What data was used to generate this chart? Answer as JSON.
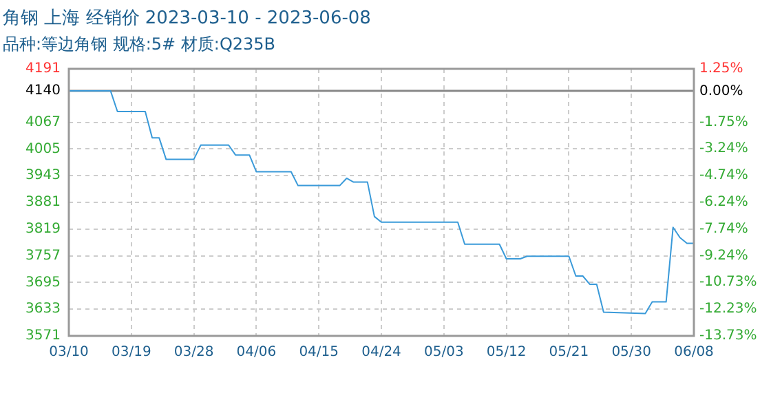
{
  "chart_data": {
    "type": "line",
    "title": "角钢 上海 经销价 2023-03-10 - 2023-06-08",
    "subtitle": "品种:等边角钢 规格:5# 材质:Q235B",
    "x": [
      "2023-03-10",
      "2023-03-16",
      "2023-03-17",
      "2023-03-21",
      "2023-03-22",
      "2023-03-23",
      "2023-03-24",
      "2023-03-28",
      "2023-03-29",
      "2023-04-02",
      "2023-04-03",
      "2023-04-05",
      "2023-04-06",
      "2023-04-11",
      "2023-04-12",
      "2023-04-18",
      "2023-04-19",
      "2023-04-20",
      "2023-04-22",
      "2023-04-23",
      "2023-04-24",
      "2023-05-05",
      "2023-05-06",
      "2023-05-11",
      "2023-05-12",
      "2023-05-14",
      "2023-05-15",
      "2023-05-21",
      "2023-05-22",
      "2023-05-23",
      "2023-05-24",
      "2023-05-25",
      "2023-05-26",
      "2023-06-01",
      "2023-06-02",
      "2023-06-04",
      "2023-06-05",
      "2023-06-06",
      "2023-06-07",
      "2023-06-08"
    ],
    "series": [
      {
        "color": "#3a9ad9",
        "values": [
          4140,
          4140,
          4092,
          4092,
          4031,
          4031,
          3981,
          3981,
          4014,
          4014,
          3991,
          3991,
          3952,
          3952,
          3920,
          3920,
          3937,
          3928,
          3928,
          3848,
          3835,
          3835,
          3784,
          3784,
          3750,
          3750,
          3756,
          3756,
          3710,
          3710,
          3691,
          3691,
          3626,
          3623,
          3650,
          3650,
          3823,
          3799,
          3786,
          3786
        ]
      }
    ],
    "xlim": [
      "2023-03-10",
      "2023-06-08"
    ],
    "xticks": [
      {
        "value": "2023-03-10",
        "label": "03/10"
      },
      {
        "value": "2023-03-19",
        "label": "03/19"
      },
      {
        "value": "2023-03-28",
        "label": "03/28"
      },
      {
        "value": "2023-04-06",
        "label": "04/06"
      },
      {
        "value": "2023-04-15",
        "label": "04/15"
      },
      {
        "value": "2023-04-24",
        "label": "04/24"
      },
      {
        "value": "2023-05-03",
        "label": "05/03"
      },
      {
        "value": "2023-05-12",
        "label": "05/12"
      },
      {
        "value": "2023-05-21",
        "label": "05/21"
      },
      {
        "value": "2023-05-30",
        "label": "05/30"
      },
      {
        "value": "2023-06-08",
        "label": "06/08"
      }
    ],
    "ylim": [
      3571,
      4191
    ],
    "yticks": [
      3571,
      3633,
      3695,
      3757,
      3819,
      3881,
      3943,
      4005,
      4067,
      4140,
      4191
    ],
    "y2lim": [
      -13.73,
      1.25
    ],
    "y2ticks": [
      {
        "value": -13.73,
        "label": "-13.73%"
      },
      {
        "value": -12.23,
        "label": "-12.23%"
      },
      {
        "value": -10.73,
        "label": "-10.73%"
      },
      {
        "value": -9.24,
        "label": "-9.24%"
      },
      {
        "value": -7.74,
        "label": "-7.74%"
      },
      {
        "value": -6.24,
        "label": "-6.24%"
      },
      {
        "value": -4.74,
        "label": "-4.74%"
      },
      {
        "value": -3.24,
        "label": "-3.24%"
      },
      {
        "value": -1.75,
        "label": "-1.75%"
      },
      {
        "value": 0,
        "label": "0.00%"
      },
      {
        "value": 1.25,
        "label": "1.25%"
      }
    ],
    "ref_lines": [
      {
        "axis": "y",
        "value": 4140,
        "color": "#888888"
      }
    ],
    "grid": true,
    "marker": "none",
    "line_style": "solid",
    "legend": false
  }
}
